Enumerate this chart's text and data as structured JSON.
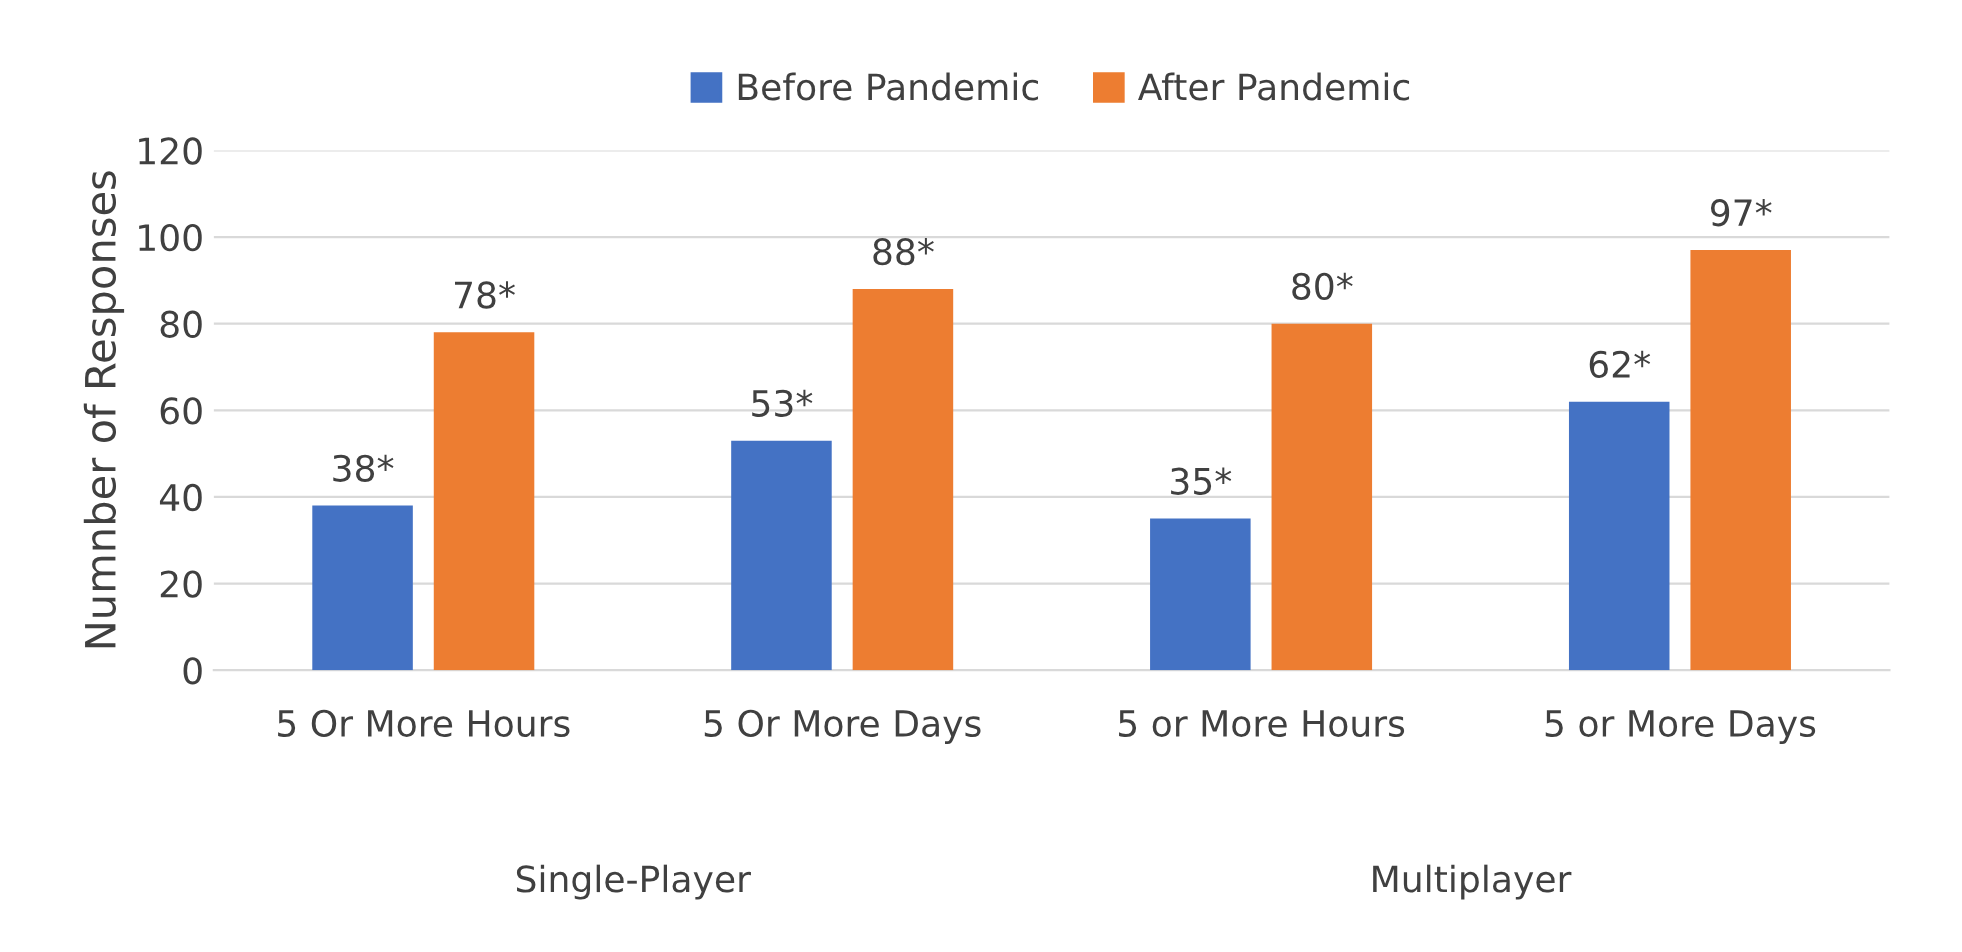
{
  "chart_data": {
    "type": "bar",
    "ylabel": "Numnber of Responses",
    "categories": [
      "5 Or More Hours",
      "5 Or More Days",
      "5 or More Hours",
      "5 or More Days"
    ],
    "series": [
      {
        "name": "Before Pandemic",
        "color": "#4472c4",
        "values": [
          38,
          53,
          35,
          62
        ],
        "value_labels": [
          "38*",
          "53*",
          "35*",
          "62*"
        ]
      },
      {
        "name": "After Pandemic",
        "color": "#ed7d31",
        "values": [
          78,
          88,
          80,
          97
        ],
        "value_labels": [
          "78*",
          "88*",
          "80*",
          "97*"
        ]
      }
    ],
    "annotations": [
      "Single-Player",
      "Multiplayer"
    ],
    "ylim": [
      0,
      120
    ],
    "yticks": [
      0,
      20,
      40,
      60,
      80,
      100,
      120
    ],
    "grid": "y",
    "legend": "top"
  }
}
